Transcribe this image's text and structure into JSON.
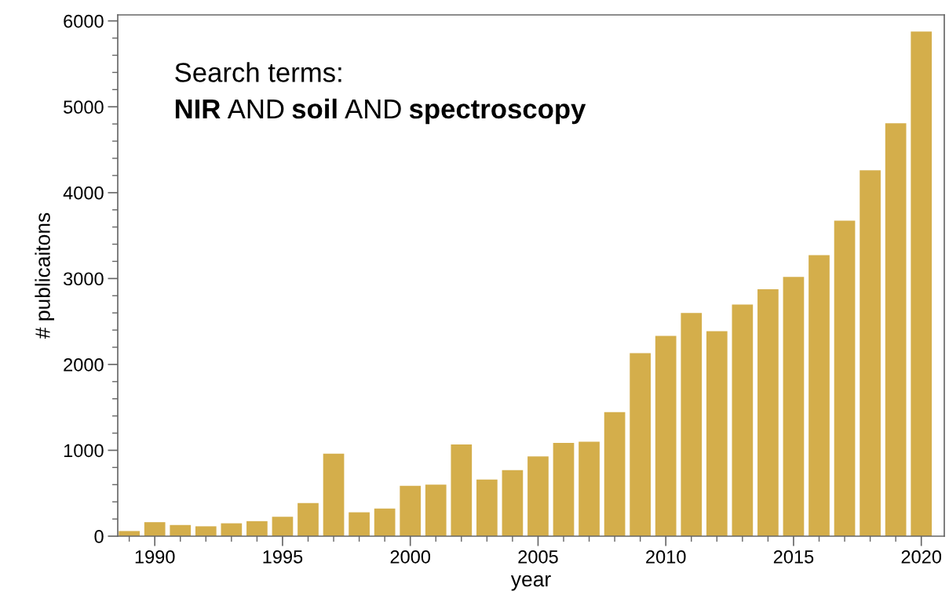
{
  "chart_data": {
    "type": "bar",
    "xlabel": "year",
    "ylabel": "# publicaitons",
    "x": [
      1989,
      1990,
      1991,
      1992,
      1993,
      1994,
      1995,
      1996,
      1997,
      1998,
      1999,
      2000,
      2001,
      2002,
      2003,
      2004,
      2005,
      2006,
      2007,
      2008,
      2009,
      2010,
      2011,
      2012,
      2013,
      2014,
      2015,
      2016,
      2017,
      2018,
      2019,
      2020
    ],
    "values": [
      60,
      163,
      130,
      115,
      150,
      175,
      226,
      385,
      960,
      278,
      321,
      587,
      600,
      1067,
      659,
      770,
      928,
      1087,
      1100,
      1444,
      2131,
      2333,
      2599,
      2388,
      2698,
      2876,
      3019,
      3273,
      3673,
      4261,
      4809,
      5875
    ],
    "color": "#d4ae4b",
    "xlim": [
      1988.55,
      2020.9
    ],
    "ylim": [
      0,
      6070
    ],
    "xticks": [
      1990,
      1995,
      2000,
      2005,
      2010,
      2015,
      2020,
      {
        "value": 1989,
        "label": null
      },
      {
        "value": 1991,
        "label": null
      },
      {
        "value": 1992,
        "label": null
      },
      {
        "value": 1993,
        "label": null
      },
      {
        "value": 1994,
        "label": null
      },
      {
        "value": 1996,
        "label": null
      },
      {
        "value": 1997,
        "label": null
      },
      {
        "value": 1998,
        "label": null
      },
      {
        "value": 1999,
        "label": null
      },
      {
        "value": 2001,
        "label": null
      },
      {
        "value": 2002,
        "label": null
      },
      {
        "value": 2003,
        "label": null
      },
      {
        "value": 2004,
        "label": null
      },
      {
        "value": 2006,
        "label": null
      },
      {
        "value": 2007,
        "label": null
      },
      {
        "value": 2008,
        "label": null
      },
      {
        "value": 2009,
        "label": null
      },
      {
        "value": 2011,
        "label": null
      },
      {
        "value": 2012,
        "label": null
      },
      {
        "value": 2013,
        "label": null
      },
      {
        "value": 2014,
        "label": null
      },
      {
        "value": 2016,
        "label": null
      },
      {
        "value": 2017,
        "label": null
      },
      {
        "value": 2018,
        "label": null
      },
      {
        "value": 2019,
        "label": null
      }
    ],
    "yticks": [
      0,
      1000,
      2000,
      3000,
      4000,
      5000,
      6000,
      {
        "value": 200,
        "label": null
      },
      {
        "value": 400,
        "label": null
      },
      {
        "value": 600,
        "label": null
      },
      {
        "value": 800,
        "label": null
      },
      {
        "value": 1200,
        "label": null
      },
      {
        "value": 1400,
        "label": null
      },
      {
        "value": 1600,
        "label": null
      },
      {
        "value": 1800,
        "label": null
      },
      {
        "value": 2200,
        "label": null
      },
      {
        "value": 2400,
        "label": null
      },
      {
        "value": 2600,
        "label": null
      },
      {
        "value": 2800,
        "label": null
      },
      {
        "value": 3200,
        "label": null
      },
      {
        "value": 3400,
        "label": null
      },
      {
        "value": 3600,
        "label": null
      },
      {
        "value": 3800,
        "label": null
      },
      {
        "value": 4200,
        "label": null
      },
      {
        "value": 4400,
        "label": null
      },
      {
        "value": 4600,
        "label": null
      },
      {
        "value": 4800,
        "label": null
      },
      {
        "value": 5200,
        "label": null
      },
      {
        "value": 5400,
        "label": null
      },
      {
        "value": 5600,
        "label": null
      },
      {
        "value": 5800,
        "label": null
      }
    ],
    "grid": false,
    "legend": false,
    "annotations": [
      "Search terms:",
      "NIR AND soil AND spectroscopy"
    ]
  }
}
